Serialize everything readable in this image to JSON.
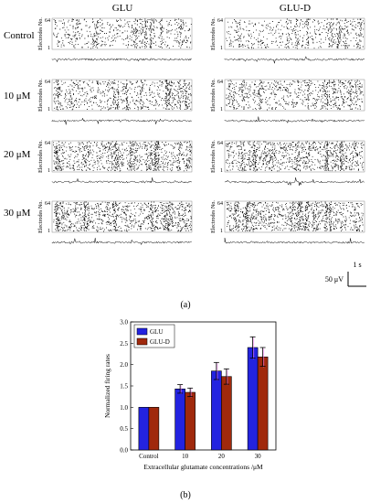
{
  "panel_a": {
    "column_titles": [
      "GLU",
      "GLU-D"
    ],
    "row_labels": [
      "Control",
      "10 μM",
      "20 μM",
      "30 μM"
    ],
    "y_axis_label": "Electrodes No.",
    "y_tick_top": "64",
    "y_tick_bottom": "1",
    "scale_time": "1 s",
    "scale_voltage": "50 μV",
    "panel_label": "(a)"
  },
  "panel_b": {
    "panel_label": "(b)"
  },
  "colors": {
    "glu": "#2323e0",
    "glu_d": "#a0290c",
    "errorbar_shadow": "#ff80ff"
  },
  "chart_data": [
    {
      "type": "bar",
      "categories": [
        "Control",
        "10",
        "20",
        "30"
      ],
      "series": [
        {
          "name": "GLU",
          "values": [
            1.0,
            1.43,
            1.85,
            2.4
          ],
          "errors": [
            0.0,
            0.1,
            0.2,
            0.25
          ]
        },
        {
          "name": "GLU-D",
          "values": [
            1.0,
            1.35,
            1.72,
            2.18
          ],
          "errors": [
            0.0,
            0.1,
            0.18,
            0.22
          ]
        }
      ],
      "title": "",
      "xlabel": "Extracellular glutamate concentrations /μM",
      "ylabel": "Normalized firing rates",
      "ylim": [
        0,
        3.0
      ],
      "yticks": [
        "0.0",
        "0.5",
        "1.0",
        "1.5",
        "2.0",
        "2.5",
        "3.0"
      ],
      "legend": "top-left",
      "grid": false
    }
  ]
}
